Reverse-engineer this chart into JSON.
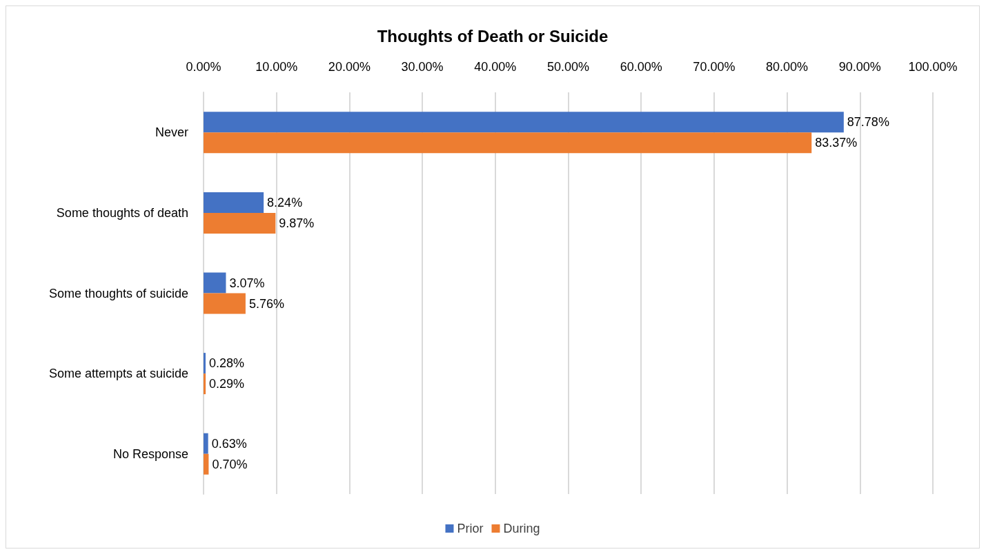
{
  "chart_data": {
    "type": "bar",
    "orientation": "horizontal",
    "title": "Thoughts of Death or Suicide",
    "categories": [
      "Never",
      "Some thoughts of death",
      "Some thoughts of suicide",
      "Some attempts at suicide",
      "No Response"
    ],
    "series": [
      {
        "name": "Prior",
        "color": "#4472c4",
        "values": [
          87.78,
          8.24,
          3.07,
          0.28,
          0.63
        ],
        "value_labels": [
          "87.78%",
          "8.24%",
          "3.07%",
          "0.28%",
          "0.63%"
        ]
      },
      {
        "name": "During",
        "color": "#ed7d31",
        "values": [
          83.37,
          9.87,
          5.76,
          0.29,
          0.7
        ],
        "value_labels": [
          "83.37%",
          "9.87%",
          "5.76%",
          "0.29%",
          "0.70%"
        ]
      }
    ],
    "xlim": [
      0,
      100
    ],
    "xticks": [
      {
        "value": 0,
        "label": "0.00%"
      },
      {
        "value": 10,
        "label": "10.00%"
      },
      {
        "value": 20,
        "label": "20.00%"
      },
      {
        "value": 30,
        "label": "30.00%"
      },
      {
        "value": 40,
        "label": "40.00%"
      },
      {
        "value": 50,
        "label": "50.00%"
      },
      {
        "value": 60,
        "label": "60.00%"
      },
      {
        "value": 70,
        "label": "70.00%"
      },
      {
        "value": 80,
        "label": "80.00%"
      },
      {
        "value": 90,
        "label": "90.00%"
      },
      {
        "value": 100,
        "label": "100.00%"
      }
    ],
    "grid": "x",
    "legend": "bottom"
  }
}
